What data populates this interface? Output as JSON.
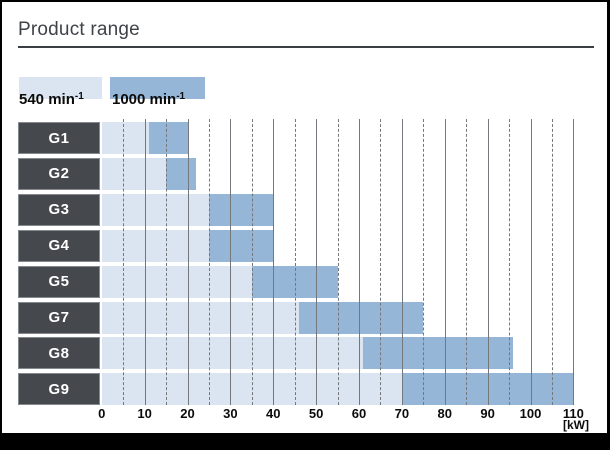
{
  "page": {
    "title": "Product range",
    "unit_label": "[kW]"
  },
  "legend": {
    "items": [
      {
        "base": "540 min",
        "sup": "-1",
        "swatch_color": "#dbe5f1"
      },
      {
        "base": "1000 min",
        "sup": "-1",
        "swatch_color": "#96b6d8"
      }
    ]
  },
  "chart_data": {
    "type": "bar",
    "orientation": "horizontal-range",
    "title": "Product range",
    "xlabel": "[kW]",
    "xlim": [
      0,
      110
    ],
    "x_ticks": [
      0,
      10,
      20,
      30,
      40,
      50,
      60,
      70,
      80,
      90,
      100,
      110
    ],
    "minor_tick_step": 5,
    "grid": "solid every 10 kW, dashed every 5 kW",
    "legend_entries": [
      "540 min-1",
      "1000 min-1"
    ],
    "rows": [
      {
        "model": "G1",
        "p540": [
          0,
          11
        ],
        "p1000": [
          11,
          20
        ]
      },
      {
        "model": "G2",
        "p540": [
          0,
          15
        ],
        "p1000": [
          15,
          22
        ]
      },
      {
        "model": "G3",
        "p540": [
          0,
          25
        ],
        "p1000": [
          25,
          40
        ]
      },
      {
        "model": "G4",
        "p540": [
          0,
          25
        ],
        "p1000": [
          25,
          40
        ]
      },
      {
        "model": "G5",
        "p540": [
          0,
          35
        ],
        "p1000": [
          35,
          55
        ]
      },
      {
        "model": "G7",
        "p540": [
          0,
          46
        ],
        "p1000": [
          46,
          75
        ]
      },
      {
        "model": "G8",
        "p540": [
          0,
          61
        ],
        "p1000": [
          61,
          96
        ]
      },
      {
        "model": "G9",
        "p540": [
          0,
          70
        ],
        "p1000": [
          70,
          110
        ]
      }
    ],
    "colors": {
      "s540": "#dbe5f1",
      "s1000": "#96b6d8",
      "row_label_bg": "#45494e",
      "row_label_text": "#ffffff",
      "gridline": "#74777b",
      "title_text": "#3f4347"
    }
  }
}
